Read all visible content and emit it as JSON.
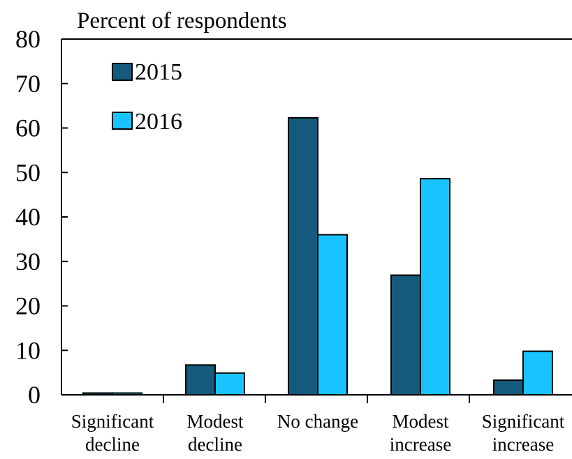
{
  "chart_data": {
    "type": "bar",
    "title": "Percent of respondents",
    "categories": [
      [
        "Significant",
        "decline"
      ],
      [
        "Modest",
        "decline"
      ],
      [
        "No change"
      ],
      [
        "Modest",
        "increase"
      ],
      [
        "Significant",
        "increase"
      ]
    ],
    "series": [
      {
        "name": "2015",
        "color": "#155a7c",
        "values": [
          0.4,
          6.7,
          62.3,
          26.9,
          3.3
        ]
      },
      {
        "name": "2016",
        "color": "#19c3ff",
        "values": [
          0.4,
          4.9,
          36.0,
          48.6,
          9.8
        ]
      }
    ],
    "y_ticks": [
      "0",
      "10",
      "20",
      "30",
      "40",
      "50",
      "60",
      "70",
      "80"
    ],
    "ylim": [
      0,
      80
    ],
    "legend_position": "top-left",
    "grid": false
  }
}
